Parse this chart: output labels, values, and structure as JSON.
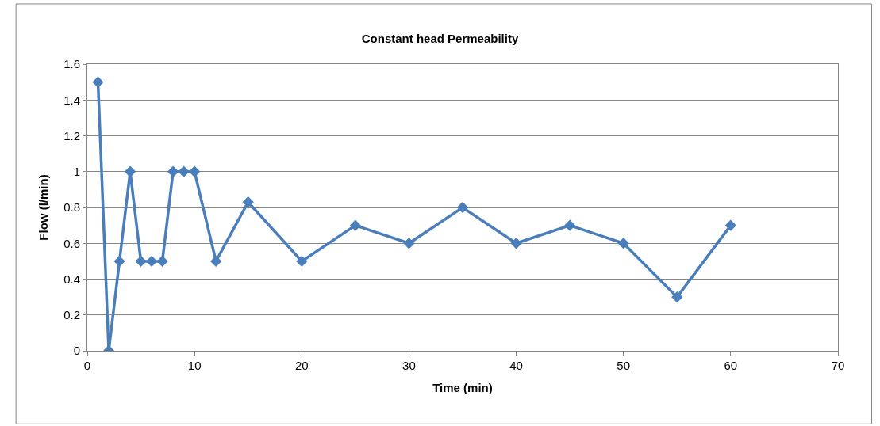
{
  "chart_data": {
    "type": "line",
    "title": "Constant head Permeability",
    "xlabel": "Time (min)",
    "ylabel": "Flow (l/min)",
    "x": [
      1,
      2,
      3,
      4,
      5,
      6,
      7,
      8,
      9,
      10,
      12,
      15,
      20,
      25,
      30,
      35,
      40,
      45,
      50,
      55,
      60
    ],
    "series": [
      {
        "color": "#4a7ebb",
        "values": [
          1.5,
          0,
          0.5,
          1,
          0.5,
          0.5,
          0.5,
          1,
          1,
          1,
          0.5,
          0.83,
          0.5,
          0.7,
          0.6,
          0.8,
          0.6,
          0.7,
          0.6,
          0.3,
          0.7
        ]
      }
    ],
    "xlim": [
      0,
      70
    ],
    "xticks": [
      0,
      10,
      20,
      30,
      40,
      50,
      60,
      70
    ],
    "ylim": [
      0,
      1.6
    ],
    "yticks": [
      0,
      0.2,
      0.4,
      0.6,
      0.8,
      1,
      1.2,
      1.4,
      1.6
    ],
    "grid": "y",
    "marker": "diamond",
    "line_style": "solid"
  }
}
